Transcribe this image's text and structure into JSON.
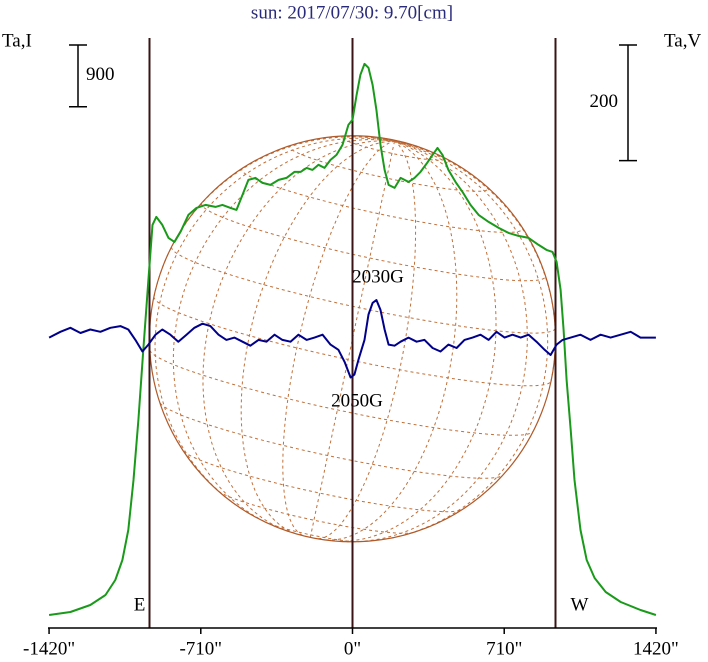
{
  "chart_data": {
    "type": "line",
    "title": "sun: 2017/07/30: 9.70[cm]",
    "xlim": [
      -1425,
      1425
    ],
    "xticks": [
      {
        "value": -1420,
        "label": "-1420\""
      },
      {
        "value": -710,
        "label": "-710\""
      },
      {
        "value": 0,
        "label": "0\""
      },
      {
        "value": 710,
        "label": "710\""
      },
      {
        "value": 1420,
        "label": "1420\""
      }
    ],
    "ylim": [
      0,
      8600
    ],
    "y2lim": [
      -500,
      520
    ],
    "limb_lines": [
      -950,
      0,
      950
    ],
    "limb_labels": [
      "E",
      "W"
    ],
    "scale_bars": [
      {
        "value": 900,
        "axis": "y"
      },
      {
        "value": 200,
        "axis": "y2"
      }
    ],
    "annotations": [
      "2030G",
      "2050G"
    ],
    "series": [
      {
        "name": "Ta,I",
        "color": "#1a9a1a",
        "axis": "y",
        "x": [
          -1420,
          -1320,
          -1227,
          -1156,
          -1110,
          -1077,
          -1049,
          -1025,
          -1002,
          -979,
          -955,
          -936,
          -918,
          -890,
          -861,
          -833,
          -805,
          -768,
          -730,
          -688,
          -641,
          -609,
          -571,
          -543,
          -515,
          -487,
          -454,
          -421,
          -384,
          -346,
          -309,
          -272,
          -243,
          -215,
          -187,
          -159,
          -131,
          -103,
          -75,
          -47,
          -19,
          0,
          19,
          37,
          56,
          75,
          94,
          112,
          131,
          150,
          169,
          197,
          225,
          262,
          290,
          318,
          346,
          375,
          398,
          421,
          449,
          482,
          515,
          552,
          590,
          637,
          684,
          730,
          777,
          824,
          871,
          908,
          936,
          955,
          974,
          988,
          1002,
          1021,
          1039,
          1067,
          1096,
          1133,
          1185,
          1255,
          1348,
          1420
        ],
        "values": [
          190,
          233,
          335,
          481,
          700,
          991,
          1429,
          2158,
          3033,
          4053,
          5074,
          5876,
          5992,
          5876,
          5686,
          5628,
          5774,
          6022,
          6124,
          6167,
          6138,
          6167,
          6124,
          6094,
          6313,
          6532,
          6561,
          6488,
          6459,
          6532,
          6561,
          6648,
          6648,
          6707,
          6678,
          6751,
          6707,
          6823,
          6896,
          7042,
          7334,
          7407,
          7771,
          8063,
          8223,
          8165,
          7917,
          7553,
          7042,
          6678,
          6459,
          6415,
          6561,
          6503,
          6561,
          6648,
          6765,
          6896,
          6998,
          6896,
          6678,
          6503,
          6357,
          6167,
          6022,
          5919,
          5832,
          5759,
          5715,
          5686,
          5584,
          5511,
          5482,
          5336,
          4928,
          4345,
          3616,
          2887,
          2158,
          1429,
          991,
          729,
          525,
          379,
          262,
          190
        ]
      },
      {
        "name": "Ta,V",
        "color": "#00008b",
        "axis": "y2",
        "x": [
          -1420,
          -1367,
          -1320,
          -1273,
          -1227,
          -1180,
          -1133,
          -1086,
          -1049,
          -1016,
          -983,
          -955,
          -922,
          -890,
          -852,
          -815,
          -777,
          -740,
          -702,
          -665,
          -627,
          -590,
          -552,
          -515,
          -478,
          -440,
          -403,
          -365,
          -328,
          -290,
          -253,
          -215,
          -178,
          -140,
          -103,
          -66,
          -37,
          -9,
          9,
          28,
          56,
          75,
          94,
          112,
          131,
          150,
          169,
          197,
          225,
          262,
          300,
          337,
          375,
          412,
          449,
          487,
          524,
          562,
          599,
          637,
          674,
          712,
          749,
          787,
          824,
          861,
          899,
          927,
          955,
          983,
          1021,
          1067,
          1114,
          1161,
          1208,
          1255,
          1302,
          1348,
          1420
        ],
        "values": [
          2,
          12,
          19,
          10,
          16,
          12,
          19,
          22,
          16,
          -2,
          -22,
          -10,
          7,
          16,
          7,
          -5,
          7,
          19,
          26,
          22,
          7,
          -2,
          2,
          -5,
          -12,
          -2,
          -5,
          7,
          -2,
          -5,
          7,
          -2,
          2,
          7,
          -10,
          -19,
          -40,
          -67,
          -62,
          -36,
          -2,
          42,
          62,
          67,
          50,
          16,
          -10,
          -12,
          -5,
          2,
          -5,
          -2,
          -16,
          -22,
          -10,
          -16,
          -2,
          2,
          7,
          -2,
          12,
          2,
          7,
          2,
          7,
          -5,
          -19,
          -28,
          -10,
          -2,
          2,
          7,
          -2,
          7,
          2,
          7,
          12,
          2,
          2
        ]
      }
    ]
  }
}
